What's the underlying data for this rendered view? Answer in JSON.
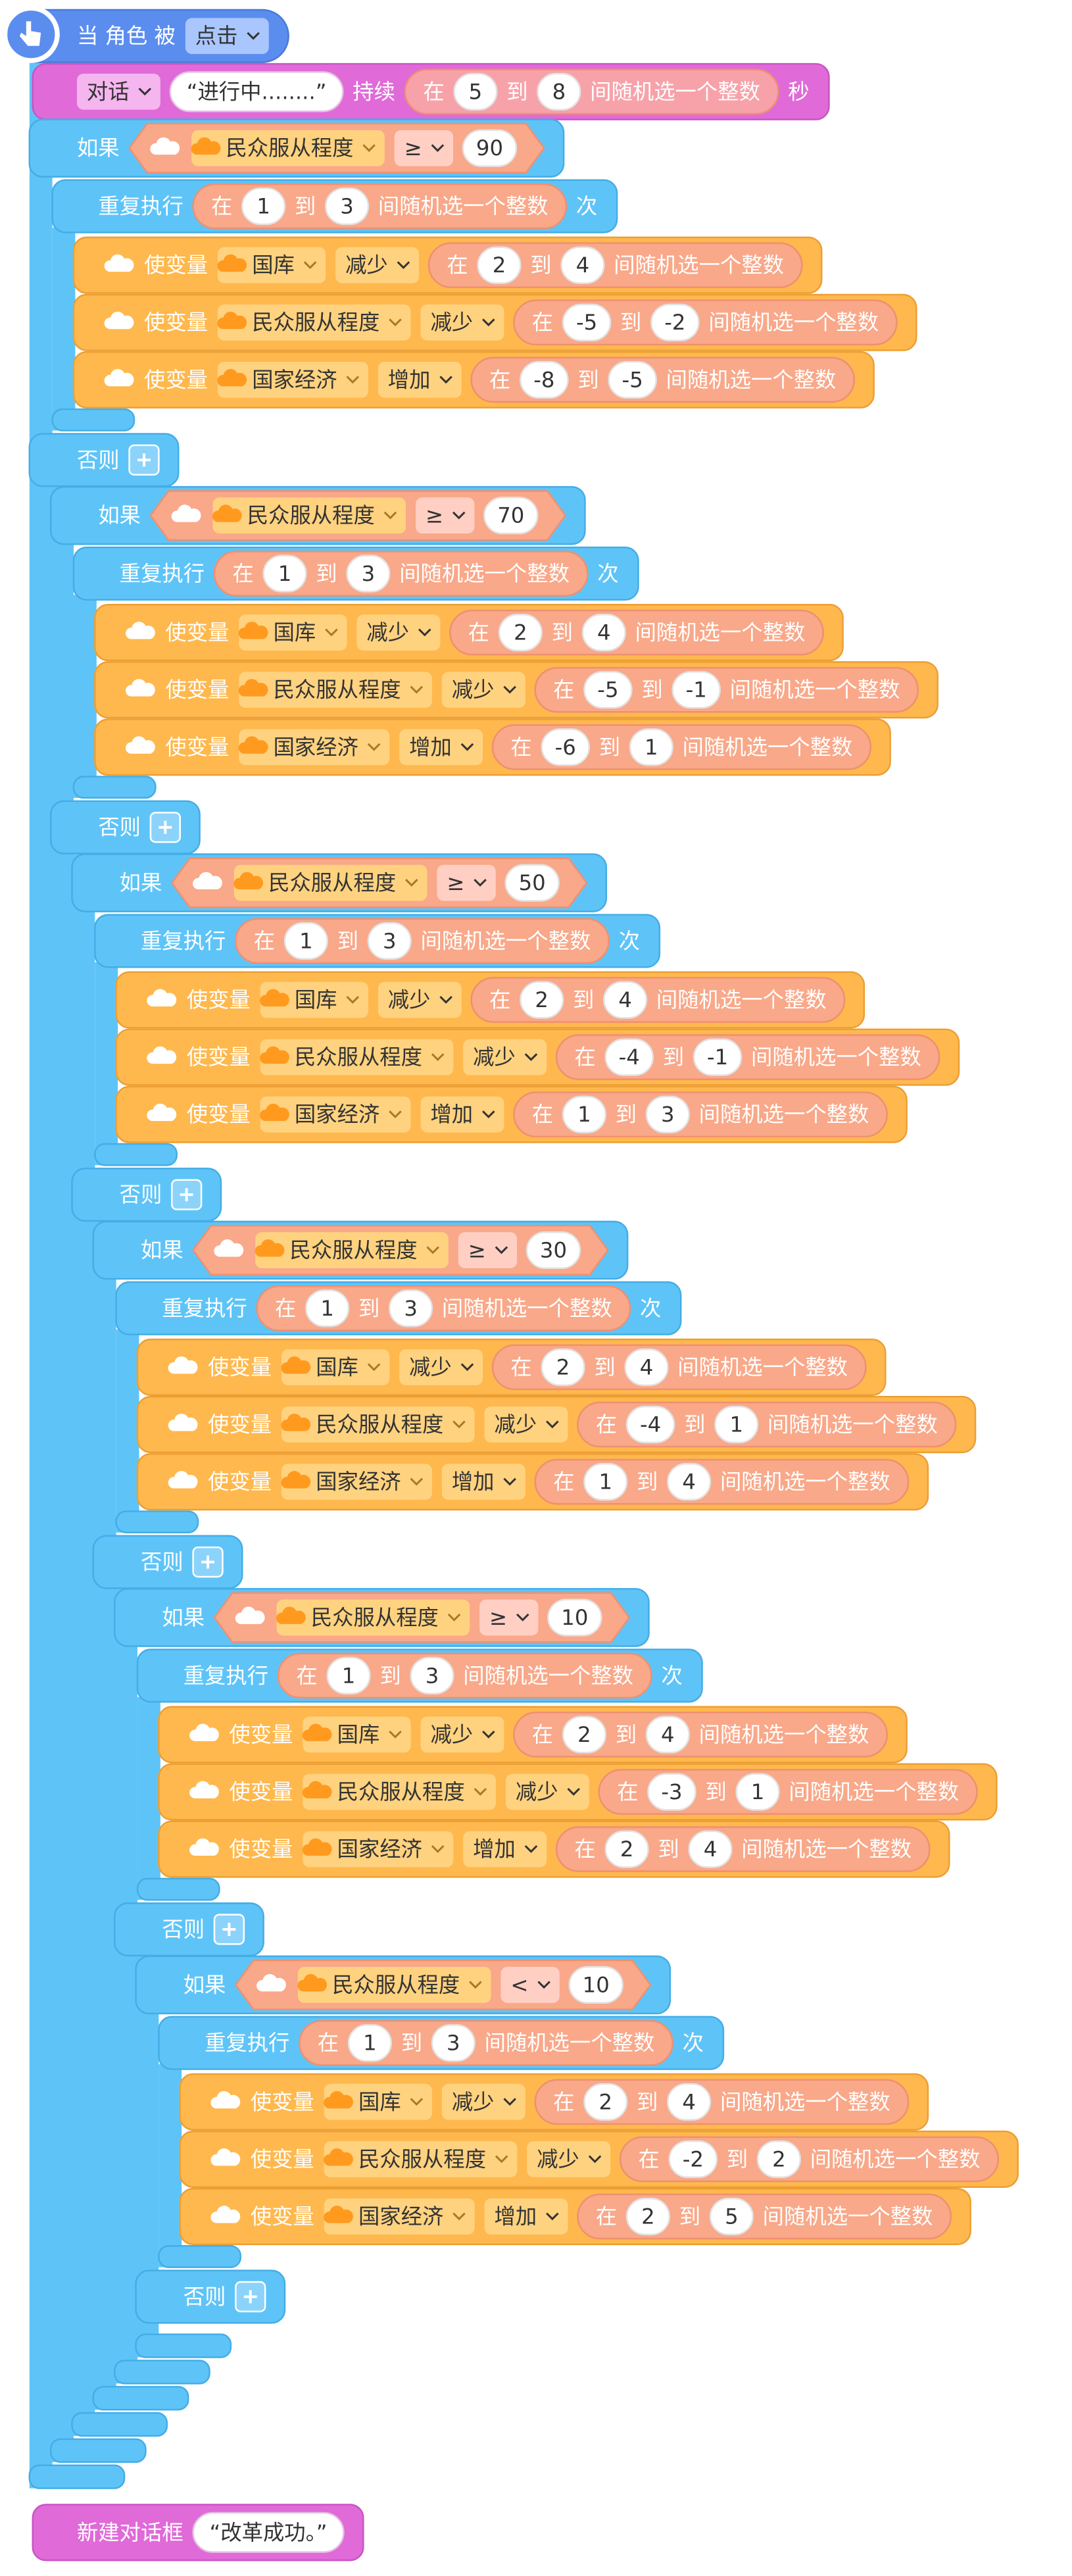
{
  "hat": {
    "label": "当 角色 被",
    "event": "点击"
  },
  "say": {
    "menu": "对话",
    "text": "“进行中........”",
    "for_label": "持续",
    "from": 5,
    "to": 8,
    "unit": "秒"
  },
  "words": {
    "if": "如果",
    "else": "否则",
    "repeat": "重复执行",
    "times": "次",
    "set": "使变量",
    "in": "在",
    "to": "到",
    "random": "间随机选一个整数"
  },
  "branches": [
    {
      "variable": "民众服从程度",
      "operator": "≥",
      "value": 90,
      "repeat_from": 1,
      "repeat_to": 3,
      "changes": [
        {
          "variable": "国库",
          "action": "减少",
          "from": 2,
          "to": 4
        },
        {
          "variable": "民众服从程度",
          "action": "减少",
          "from": -5,
          "to": -2
        },
        {
          "variable": "国家经济",
          "action": "增加",
          "from": -8,
          "to": -5
        }
      ]
    },
    {
      "variable": "民众服从程度",
      "operator": "≥",
      "value": 70,
      "repeat_from": 1,
      "repeat_to": 3,
      "changes": [
        {
          "variable": "国库",
          "action": "减少",
          "from": 2,
          "to": 4
        },
        {
          "variable": "民众服从程度",
          "action": "减少",
          "from": -5,
          "to": -1
        },
        {
          "variable": "国家经济",
          "action": "增加",
          "from": -6,
          "to": 1
        }
      ]
    },
    {
      "variable": "民众服从程度",
      "operator": "≥",
      "value": 50,
      "repeat_from": 1,
      "repeat_to": 3,
      "changes": [
        {
          "variable": "国库",
          "action": "减少",
          "from": 2,
          "to": 4
        },
        {
          "variable": "民众服从程度",
          "action": "减少",
          "from": -4,
          "to": -1
        },
        {
          "variable": "国家经济",
          "action": "增加",
          "from": 1,
          "to": 3
        }
      ]
    },
    {
      "variable": "民众服从程度",
      "operator": "≥",
      "value": 30,
      "repeat_from": 1,
      "repeat_to": 3,
      "changes": [
        {
          "variable": "国库",
          "action": "减少",
          "from": 2,
          "to": 4
        },
        {
          "variable": "民众服从程度",
          "action": "减少",
          "from": -4,
          "to": 1
        },
        {
          "variable": "国家经济",
          "action": "增加",
          "from": 1,
          "to": 4
        }
      ]
    },
    {
      "variable": "民众服从程度",
      "operator": "≥",
      "value": 10,
      "repeat_from": 1,
      "repeat_to": 3,
      "changes": [
        {
          "variable": "国库",
          "action": "减少",
          "from": 2,
          "to": 4
        },
        {
          "variable": "民众服从程度",
          "action": "减少",
          "from": -3,
          "to": 1
        },
        {
          "variable": "国家经济",
          "action": "增加",
          "from": 2,
          "to": 4
        }
      ]
    },
    {
      "variable": "民众服从程度",
      "operator": "<",
      "value": 10,
      "repeat_from": 1,
      "repeat_to": 3,
      "changes": [
        {
          "variable": "国库",
          "action": "减少",
          "from": 2,
          "to": 4
        },
        {
          "variable": "民众服从程度",
          "action": "减少",
          "from": -2,
          "to": 2
        },
        {
          "variable": "国家经济",
          "action": "增加",
          "from": 2,
          "to": 5
        }
      ]
    }
  ],
  "final": {
    "label": "新建对话框",
    "text": "“改革成功。”"
  }
}
